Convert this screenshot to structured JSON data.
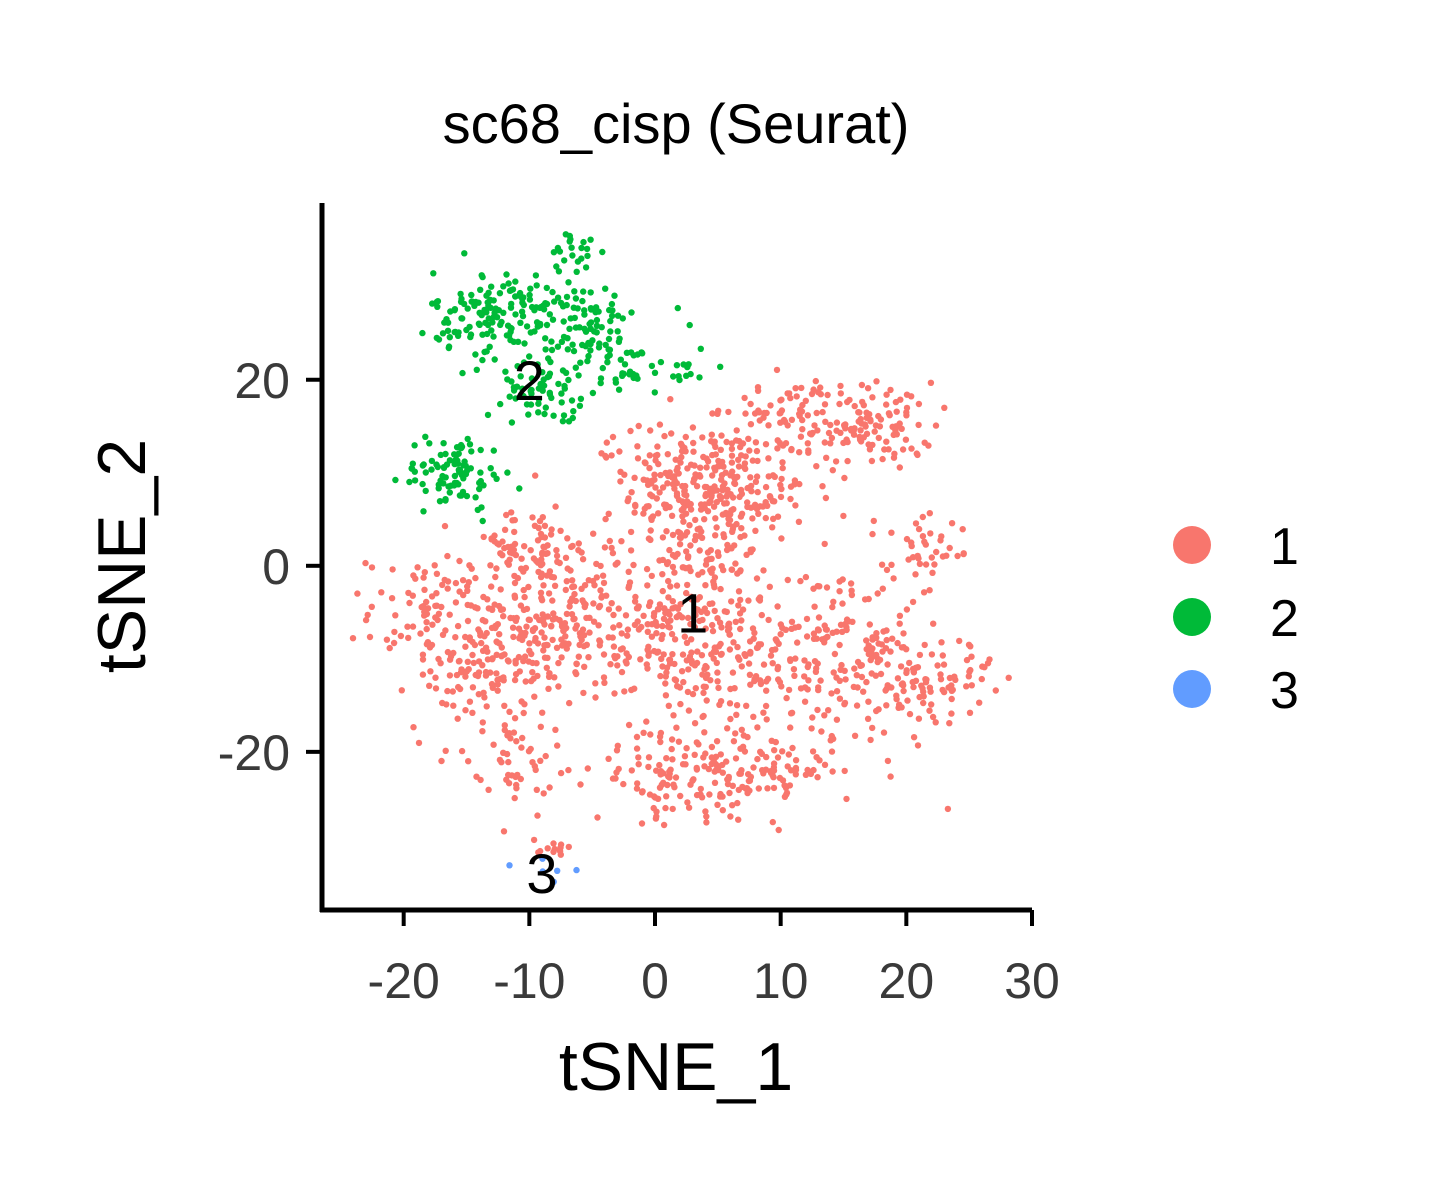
{
  "chart_data": {
    "type": "scatter",
    "title": "sc68_cisp (Seurat)",
    "xlabel": "tSNE_1",
    "ylabel": "tSNE_2",
    "xlim": [
      -26.5,
      30
    ],
    "ylim": [
      -37,
      39
    ],
    "xticks": [
      -20,
      -10,
      0,
      10,
      20,
      30
    ],
    "yticks": [
      -20,
      0,
      20
    ],
    "xtick_labels": [
      "-20",
      "-10",
      "0",
      "10",
      "20",
      "30"
    ],
    "ytick_labels": [
      "-20",
      "0",
      "20"
    ],
    "legend_position": "right",
    "grid": false,
    "series": [
      {
        "name": "1",
        "color": "#F8766D",
        "label_position": [
          3,
          -5
        ],
        "clusters": [
          {
            "center": [
              5,
              8
            ],
            "spread": [
              4.5,
              4.5
            ],
            "count": 260
          },
          {
            "center": [
              17,
              15
            ],
            "spread": [
              3.2,
              3
            ],
            "count": 120
          },
          {
            "center": [
              10,
              17
            ],
            "spread": [
              3,
              2
            ],
            "count": 50
          },
          {
            "center": [
              -9,
              -7
            ],
            "spread": [
              4,
              4
            ],
            "count": 180
          },
          {
            "center": [
              -18,
              -5
            ],
            "spread": [
              3,
              4
            ],
            "count": 80
          },
          {
            "center": [
              -10,
              2
            ],
            "spread": [
              3.5,
              2.5
            ],
            "count": 80
          },
          {
            "center": [
              -15,
              -12
            ],
            "spread": [
              3,
              4
            ],
            "count": 70
          },
          {
            "center": [
              2,
              -6
            ],
            "spread": [
              6,
              7
            ],
            "count": 380
          },
          {
            "center": [
              7,
              -22
            ],
            "spread": [
              4.5,
              3
            ],
            "count": 140
          },
          {
            "center": [
              0,
              -23
            ],
            "spread": [
              3,
              2.5
            ],
            "count": 50
          },
          {
            "center": [
              15,
              -10
            ],
            "spread": [
              5,
              7
            ],
            "count": 220
          },
          {
            "center": [
              22,
              -12
            ],
            "spread": [
              3,
              2.5
            ],
            "count": 70
          },
          {
            "center": [
              -11,
              -20
            ],
            "spread": [
              2.5,
              5
            ],
            "count": 60
          },
          {
            "center": [
              1,
              11
            ],
            "spread": [
              3,
              3
            ],
            "count": 60
          },
          {
            "center": [
              22,
              2
            ],
            "spread": [
              2,
              3
            ],
            "count": 30
          },
          {
            "center": [
              -8,
              -30.5
            ],
            "spread": [
              1.3,
              0.6
            ],
            "count": 10
          }
        ]
      },
      {
        "name": "2",
        "color": "#00BA38",
        "label_position": [
          -10,
          20
        ],
        "clusters": [
          {
            "center": [
              -12,
              27
            ],
            "spread": [
              3.5,
              3
            ],
            "count": 160
          },
          {
            "center": [
              -5,
              24
            ],
            "spread": [
              3.5,
              4
            ],
            "count": 100
          },
          {
            "center": [
              -9,
              19
            ],
            "spread": [
              2,
              2
            ],
            "count": 50
          },
          {
            "center": [
              -16,
              10
            ],
            "spread": [
              2.5,
              2.5
            ],
            "count": 90
          },
          {
            "center": [
              -6,
              34
            ],
            "spread": [
              1.5,
              1.5
            ],
            "count": 20
          },
          {
            "center": [
              1,
              21
            ],
            "spread": [
              2.5,
              1
            ],
            "count": 20
          }
        ]
      },
      {
        "name": "3",
        "color": "#619CFF",
        "label_position": [
          -9,
          -33
        ],
        "clusters": [
          {
            "center": [
              -8.5,
              -32.5
            ],
            "spread": [
              1.2,
              0.8
            ],
            "count": 6
          }
        ]
      }
    ]
  },
  "legend": {
    "items": [
      {
        "label": "1",
        "color": "#F8766D"
      },
      {
        "label": "2",
        "color": "#00BA38"
      },
      {
        "label": "3",
        "color": "#619CFF"
      }
    ]
  }
}
